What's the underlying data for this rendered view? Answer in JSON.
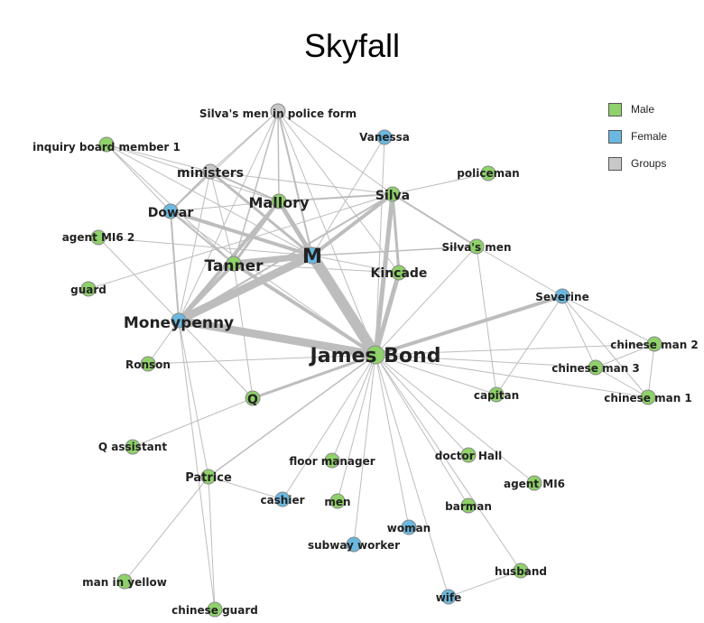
{
  "title": "Skyfall",
  "legend": [
    {
      "label": "Male",
      "color": "#8fd16a"
    },
    {
      "label": "Female",
      "color": "#6ab8e0"
    },
    {
      "label": "Groups",
      "color": "#c8c8c8"
    }
  ],
  "colors": {
    "edge": "#bdbdbd",
    "node_stroke": "#8a8a8a"
  },
  "nodes": [
    {
      "id": "silvas_police",
      "label": "Silva's men in police form",
      "group": "Groups"
    },
    {
      "id": "inquiry1",
      "label": "inquiry board member 1",
      "group": "Male"
    },
    {
      "id": "vanessa",
      "label": "Vanessa",
      "group": "Female"
    },
    {
      "id": "ministers",
      "label": "ministers",
      "group": "Groups"
    },
    {
      "id": "policeman",
      "label": "policeman",
      "group": "Male"
    },
    {
      "id": "mallory",
      "label": "Mallory",
      "group": "Male"
    },
    {
      "id": "silva",
      "label": "Silva",
      "group": "Male"
    },
    {
      "id": "dowar",
      "label": "Dowar",
      "group": "Female"
    },
    {
      "id": "agentmi62",
      "label": "agent MI6 2",
      "group": "Male"
    },
    {
      "id": "silvasmen",
      "label": "Silva's men",
      "group": "Male"
    },
    {
      "id": "m",
      "label": "M",
      "group": "Female"
    },
    {
      "id": "tanner",
      "label": "Tanner",
      "group": "Male"
    },
    {
      "id": "kincade",
      "label": "Kincade",
      "group": "Male"
    },
    {
      "id": "guard",
      "label": "guard",
      "group": "Male"
    },
    {
      "id": "severine",
      "label": "Severine",
      "group": "Female"
    },
    {
      "id": "moneypenny",
      "label": "Moneypenny",
      "group": "Female"
    },
    {
      "id": "bond",
      "label": "James Bond",
      "group": "Male"
    },
    {
      "id": "chinese2",
      "label": "chinese man 2",
      "group": "Male"
    },
    {
      "id": "chinese3",
      "label": "chinese man 3",
      "group": "Male"
    },
    {
      "id": "ronson",
      "label": "Ronson",
      "group": "Male"
    },
    {
      "id": "chinese1",
      "label": "chinese man 1",
      "group": "Male"
    },
    {
      "id": "capitan",
      "label": "capitan",
      "group": "Male"
    },
    {
      "id": "q",
      "label": "Q",
      "group": "Male"
    },
    {
      "id": "qassistant",
      "label": "Q assistant",
      "group": "Male"
    },
    {
      "id": "doctorhall",
      "label": "doctor Hall",
      "group": "Male"
    },
    {
      "id": "floormanager",
      "label": "floor manager",
      "group": "Male"
    },
    {
      "id": "agentmi6",
      "label": "agent MI6",
      "group": "Male"
    },
    {
      "id": "patrice",
      "label": "Patrice",
      "group": "Male"
    },
    {
      "id": "cashier",
      "label": "cashier",
      "group": "Female"
    },
    {
      "id": "men",
      "label": "men",
      "group": "Male"
    },
    {
      "id": "barman",
      "label": "barman",
      "group": "Male"
    },
    {
      "id": "woman",
      "label": "woman",
      "group": "Female"
    },
    {
      "id": "subwayworker",
      "label": "subway worker",
      "group": "Female"
    },
    {
      "id": "husband",
      "label": "husband",
      "group": "Male"
    },
    {
      "id": "maninyellow",
      "label": "man in yellow",
      "group": "Male"
    },
    {
      "id": "wife",
      "label": "wife",
      "group": "Female"
    },
    {
      "id": "chineseguard",
      "label": "chinese guard",
      "group": "Male"
    }
  ],
  "edges": [
    [
      "bond",
      "m",
      12
    ],
    [
      "bond",
      "moneypenny",
      9
    ],
    [
      "m",
      "moneypenny",
      9
    ],
    [
      "m",
      "tanner",
      7
    ],
    [
      "m",
      "mallory",
      5
    ],
    [
      "bond",
      "kincade",
      5
    ],
    [
      "bond",
      "silva",
      5
    ],
    [
      "m",
      "silva",
      4
    ],
    [
      "tanner",
      "moneypenny",
      4
    ],
    [
      "bond",
      "severine",
      4
    ],
    [
      "mallory",
      "moneypenny",
      4
    ],
    [
      "dowar",
      "m",
      4
    ],
    [
      "bond",
      "tanner",
      4
    ],
    [
      "m",
      "ministers",
      3
    ],
    [
      "mallory",
      "tanner",
      3
    ],
    [
      "bond",
      "q",
      3
    ],
    [
      "silva",
      "kincade",
      3
    ],
    [
      "silva",
      "silvasmen",
      2
    ],
    [
      "bond",
      "mallory",
      2
    ],
    [
      "dowar",
      "moneypenny",
      2
    ],
    [
      "tanner",
      "dowar",
      2
    ],
    [
      "silva",
      "moneypenny",
      2
    ],
    [
      "mallory",
      "silva",
      2
    ],
    [
      "ministers",
      "mallory",
      2
    ],
    [
      "ministers",
      "dowar",
      2
    ],
    [
      "silvas_police",
      "m",
      2
    ],
    [
      "silvas_police",
      "mallory",
      1.5
    ],
    [
      "silvas_police",
      "tanner",
      1.5
    ],
    [
      "bond",
      "patrice",
      1.5
    ],
    [
      "moneypenny",
      "patrice",
      1
    ],
    [
      "m",
      "silvasmen",
      1.5
    ],
    [
      "inquiry1",
      "m",
      1
    ],
    [
      "inquiry1",
      "ministers",
      1
    ],
    [
      "inquiry1",
      "tanner",
      1
    ],
    [
      "inquiry1",
      "mallory",
      1
    ],
    [
      "inquiry1",
      "dowar",
      1
    ],
    [
      "vanessa",
      "m",
      1
    ],
    [
      "vanessa",
      "bond",
      1
    ],
    [
      "policeman",
      "silva",
      1
    ],
    [
      "silvas_police",
      "moneypenny",
      1
    ],
    [
      "silvas_police",
      "silva",
      1
    ],
    [
      "silvas_police",
      "kincade",
      1
    ],
    [
      "silvas_police",
      "bond",
      1
    ],
    [
      "silvas_police",
      "dowar",
      1
    ],
    [
      "silvas_police",
      "ministers",
      1
    ],
    [
      "ministers",
      "silva",
      1
    ],
    [
      "ministers",
      "tanner",
      1
    ],
    [
      "ministers",
      "moneypenny",
      1
    ],
    [
      "dowar",
      "mallory",
      1
    ],
    [
      "dowar",
      "bond",
      1
    ],
    [
      "agentmi62",
      "m",
      1
    ],
    [
      "agentmi62",
      "moneypenny",
      1
    ],
    [
      "guard",
      "silva",
      1
    ],
    [
      "ronson",
      "bond",
      1
    ],
    [
      "ronson",
      "moneypenny",
      1
    ],
    [
      "tanner",
      "q",
      1
    ],
    [
      "tanner",
      "kincade",
      1
    ],
    [
      "kincade",
      "m",
      1
    ],
    [
      "silvasmen",
      "bond",
      1
    ],
    [
      "silvasmen",
      "capitan",
      1
    ],
    [
      "silvasmen",
      "severine",
      1
    ],
    [
      "severine",
      "chinese2",
      1
    ],
    [
      "severine",
      "chinese3",
      1
    ],
    [
      "severine",
      "chinese1",
      1
    ],
    [
      "severine",
      "capitan",
      1
    ],
    [
      "bond",
      "chinese2",
      1
    ],
    [
      "bond",
      "chinese3",
      1
    ],
    [
      "bond",
      "chinese1",
      1
    ],
    [
      "chinese2",
      "chinese3",
      1
    ],
    [
      "chinese2",
      "chinese1",
      1
    ],
    [
      "chinese3",
      "chinese1",
      1
    ],
    [
      "bond",
      "capitan",
      1
    ],
    [
      "q",
      "qassistant",
      1
    ],
    [
      "bond",
      "doctorhall",
      1
    ],
    [
      "bond",
      "floormanager",
      1
    ],
    [
      "bond",
      "agentmi6",
      1
    ],
    [
      "bond",
      "cashier",
      1
    ],
    [
      "bond",
      "men",
      1
    ],
    [
      "bond",
      "barman",
      1
    ],
    [
      "bond",
      "woman",
      1
    ],
    [
      "bond",
      "subwayworker",
      1
    ],
    [
      "bond",
      "husband",
      1
    ],
    [
      "bond",
      "wife",
      1
    ],
    [
      "wife",
      "husband",
      1
    ],
    [
      "patrice",
      "maninyellow",
      1
    ],
    [
      "patrice",
      "chineseguard",
      1
    ],
    [
      "patrice",
      "cashier",
      1
    ],
    [
      "moneypenny",
      "chineseguard",
      1
    ],
    [
      "q",
      "moneypenny",
      1
    ]
  ]
}
